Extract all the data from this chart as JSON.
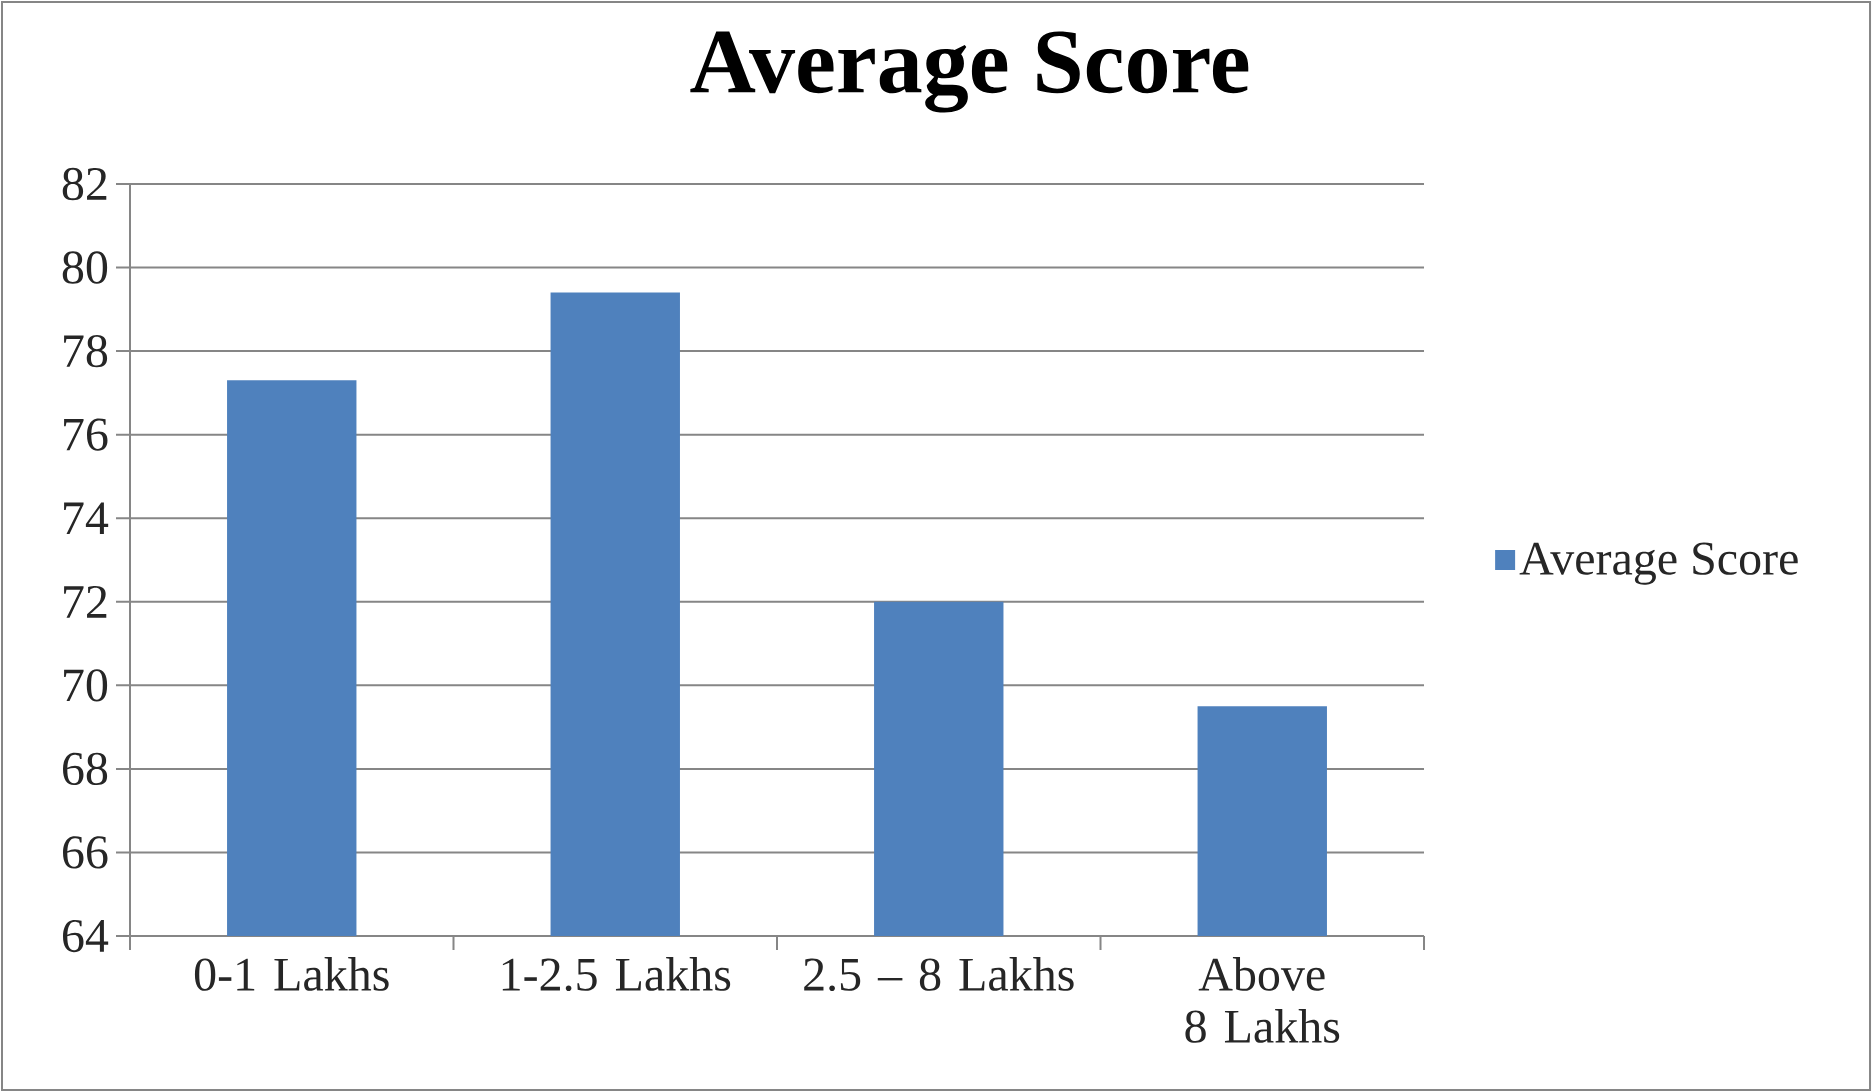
{
  "chart_data": {
    "type": "bar",
    "title": "Average Score",
    "categories": [
      "0-1 Lakhs",
      "1-2.5 Lakhs",
      "2.5 – 8 Lakhs",
      "Above 8 Lakhs"
    ],
    "series": [
      {
        "name": "Average Score",
        "color": "#4f81bd",
        "values": [
          77.3,
          79.4,
          72.0,
          69.5
        ]
      }
    ],
    "ylim": [
      64,
      82
    ],
    "yticks": [
      64,
      66,
      68,
      70,
      72,
      74,
      76,
      78,
      80,
      82
    ],
    "grid": "y",
    "legend": "right"
  }
}
